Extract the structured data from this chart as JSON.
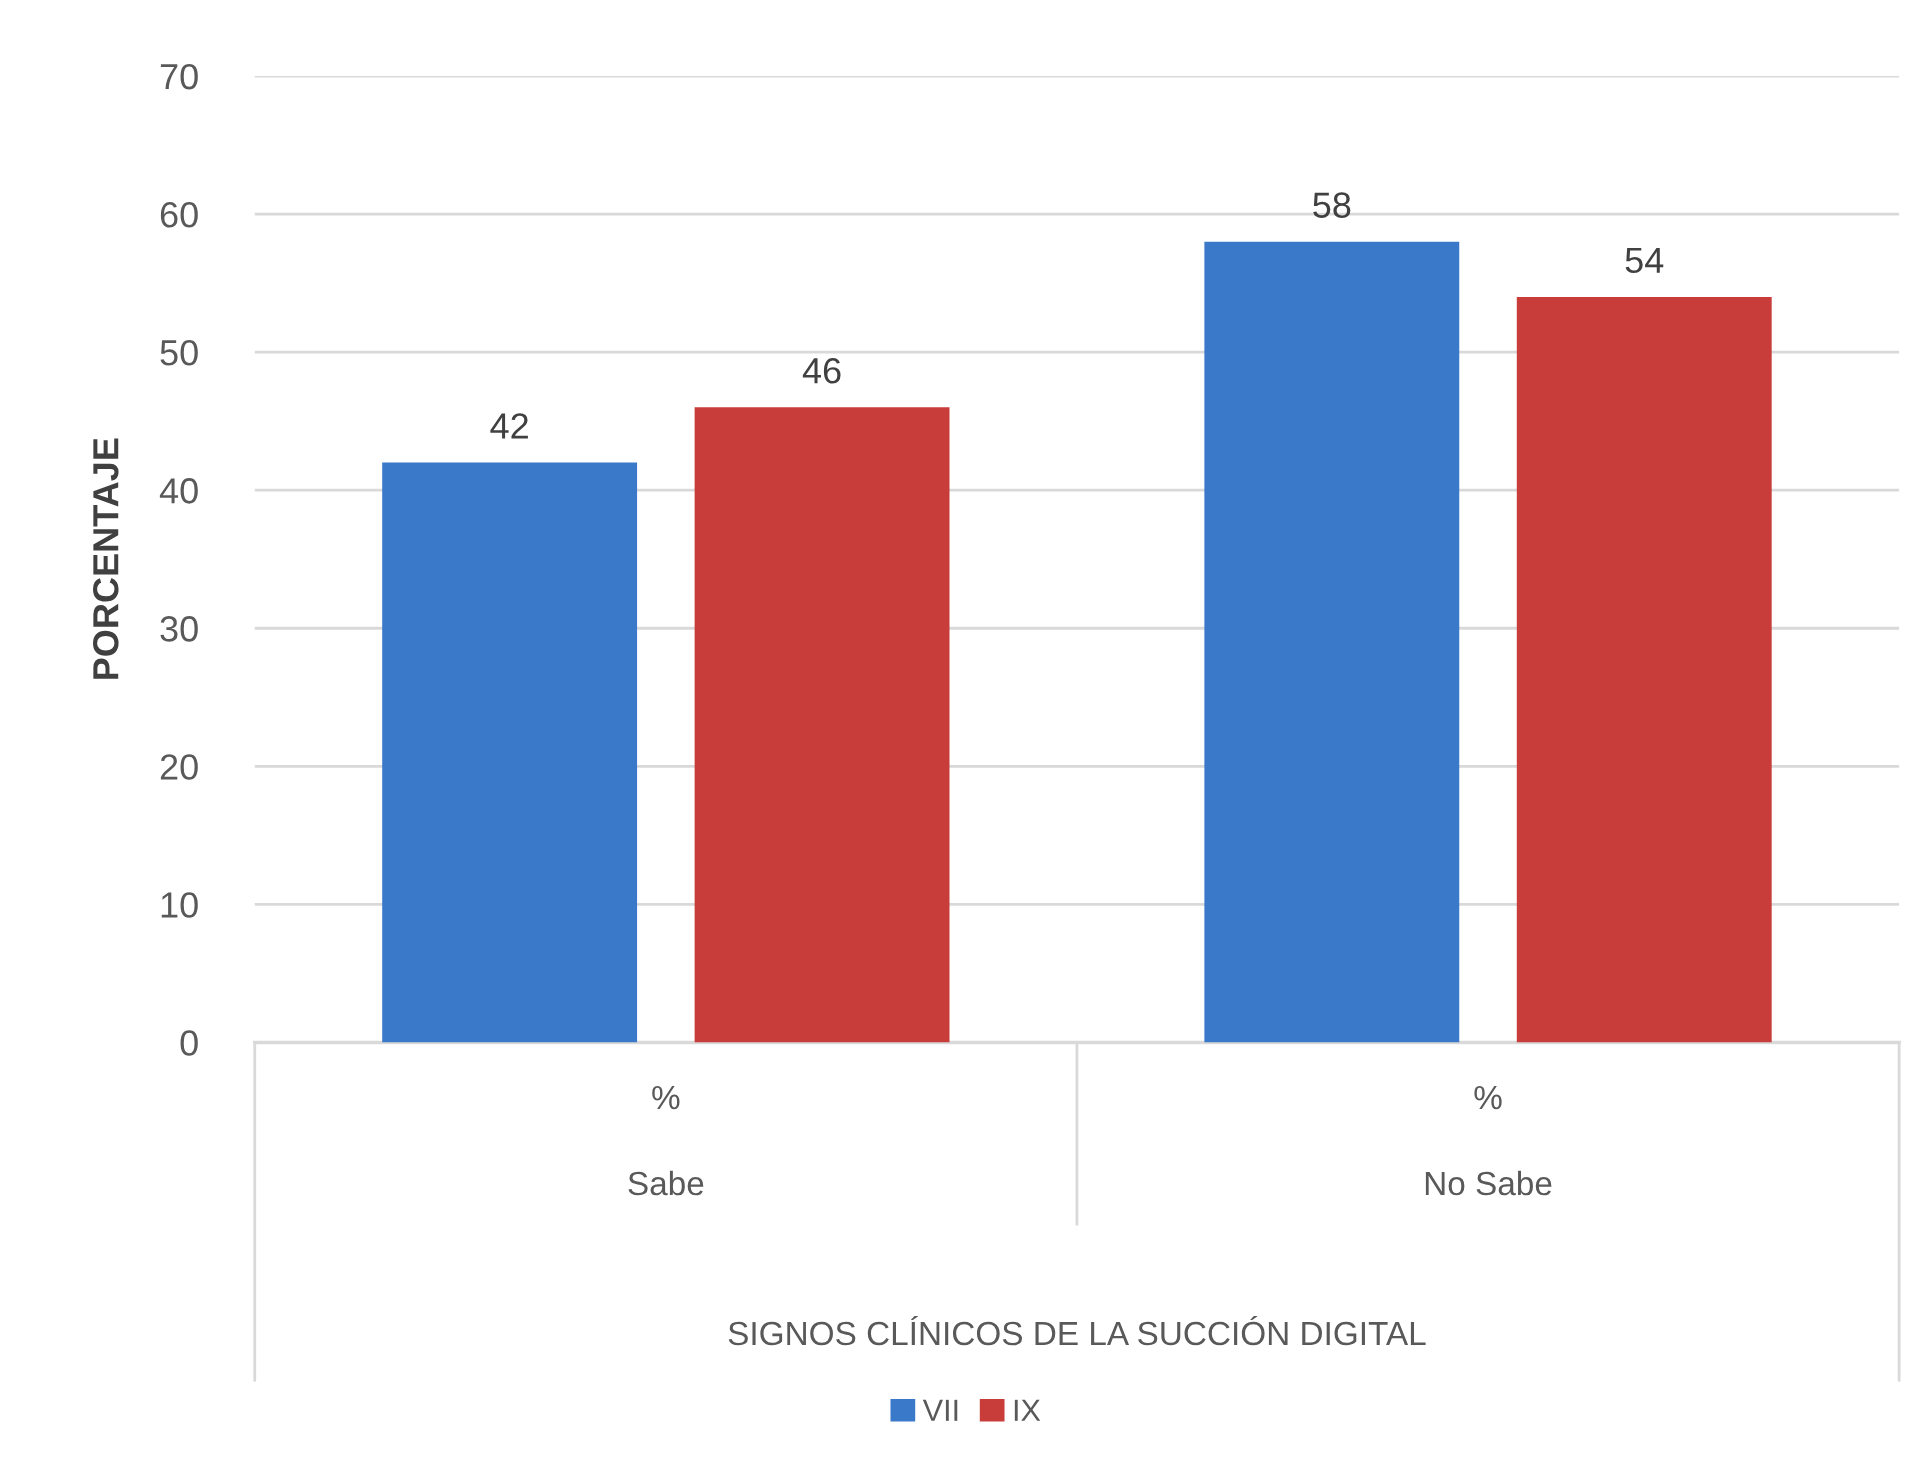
{
  "chart_data": {
    "type": "bar",
    "ylabel": "PORCENTAJE",
    "xlabel": "SIGNOS CLÍNICOS DE LA SUCCIÓN DIGITAL",
    "categories": [
      "Sabe",
      "No Sabe"
    ],
    "series": [
      {
        "name": "VII",
        "color": "#3a78c9",
        "values": [
          42,
          58
        ]
      },
      {
        "name": "IX",
        "color": "#c83c3a",
        "values": [
          46,
          54
        ]
      }
    ],
    "annotations": [
      "%",
      "%"
    ],
    "ylim": [
      0,
      70
    ],
    "yticks": [
      0,
      10,
      20,
      30,
      40,
      50,
      60,
      70
    ],
    "grid": "y",
    "legend": "bottom",
    "data_labels": true
  }
}
